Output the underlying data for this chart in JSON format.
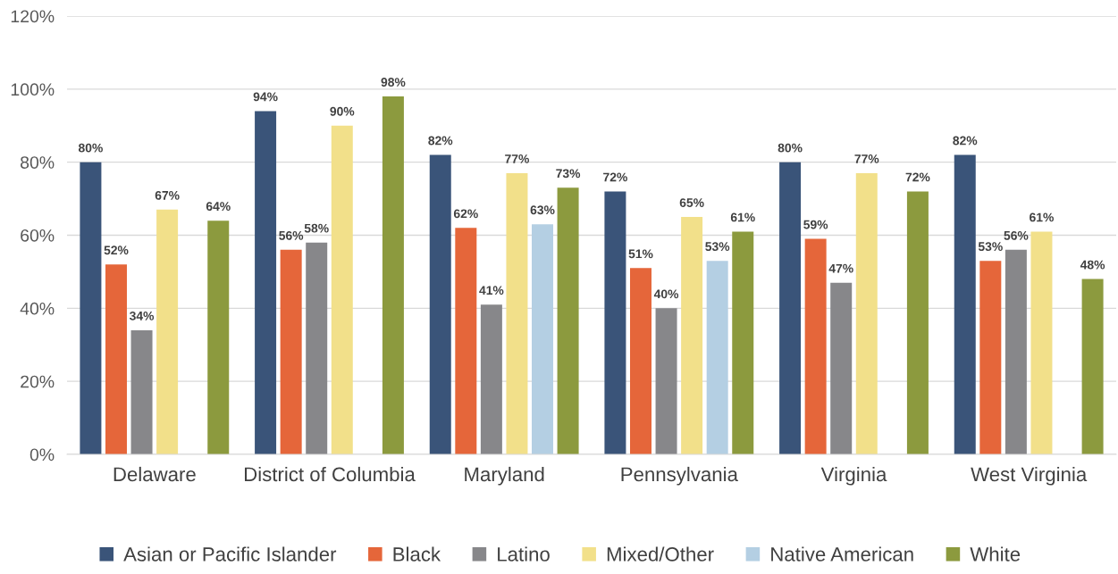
{
  "chart_data": {
    "type": "bar",
    "categories": [
      "Delaware",
      "District of Columbia",
      "Maryland",
      "Pennsylvania",
      "Virginia",
      "West Virginia"
    ],
    "series": [
      {
        "name": "Asian or Pacific Islander",
        "color": "#3a5479",
        "values": [
          80,
          94,
          82,
          72,
          80,
          82
        ],
        "value_labels": [
          "80%",
          "94%",
          "82%",
          "72%",
          "80%",
          "82%"
        ]
      },
      {
        "name": "Black",
        "color": "#e5663a",
        "values": [
          52,
          56,
          62,
          51,
          59,
          53
        ],
        "value_labels": [
          "52%",
          "56%",
          "62%",
          "51%",
          "59%",
          "53%"
        ]
      },
      {
        "name": "Latino",
        "color": "#87878a",
        "values": [
          34,
          58,
          41,
          40,
          47,
          56
        ],
        "value_labels": [
          "34%",
          "58%",
          "41%",
          "40%",
          "47%",
          "56%"
        ]
      },
      {
        "name": "Mixed/Other",
        "color": "#f2e08a",
        "values": [
          67,
          90,
          77,
          65,
          77,
          61
        ],
        "value_labels": [
          "67%",
          "90%",
          "77%",
          "65%",
          "77%",
          "61%"
        ]
      },
      {
        "name": "Native American",
        "color": "#b4cfe3",
        "values": [
          null,
          null,
          63,
          53,
          null,
          null
        ],
        "value_labels": [
          null,
          null,
          "63%",
          "53%",
          null,
          null
        ]
      },
      {
        "name": "White",
        "color": "#8c9a3e",
        "values": [
          64,
          98,
          73,
          61,
          72,
          48
        ],
        "value_labels": [
          "64%",
          "98%",
          "73%",
          "61%",
          "72%",
          "48%"
        ]
      }
    ],
    "ylim": [
      0,
      120
    ],
    "yticks": [
      {
        "value": 0,
        "label": "0%"
      },
      {
        "value": 20,
        "label": "20%"
      },
      {
        "value": 40,
        "label": "40%"
      },
      {
        "value": 60,
        "label": "60%"
      },
      {
        "value": 80,
        "label": "80%"
      },
      {
        "value": 100,
        "label": "100%"
      },
      {
        "value": 120,
        "label": "120%"
      }
    ],
    "grid": "y",
    "legend": "bottom"
  }
}
